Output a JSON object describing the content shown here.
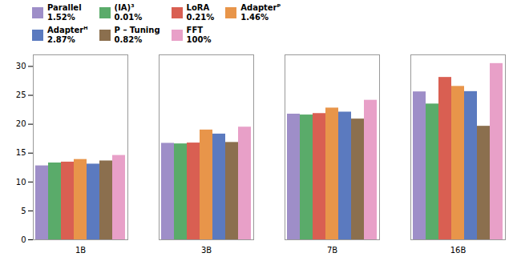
{
  "chart_data": {
    "type": "bar",
    "categories": [
      "1B",
      "3B",
      "7B",
      "16B"
    ],
    "series": [
      {
        "name": "Parallel\n1.52%",
        "color": "#9e8ec8",
        "values": [
          12.8,
          16.7,
          21.75,
          25.6
        ]
      },
      {
        "name": "(IA)³\n0.01%",
        "color": "#5aab6a",
        "values": [
          13.3,
          16.6,
          21.6,
          23.5
        ]
      },
      {
        "name": "LoRA\n0.21%",
        "color": "#d95f52",
        "values": [
          13.45,
          16.75,
          21.85,
          28.1
        ]
      },
      {
        "name": "Adapterᴾ\n1.46%",
        "color": "#e8954a",
        "values": [
          13.9,
          19.0,
          22.8,
          26.55
        ]
      },
      {
        "name": "Adapterᴴ\n2.87%",
        "color": "#5b7abf",
        "values": [
          13.1,
          18.3,
          22.1,
          25.65
        ]
      },
      {
        "name": "P – Tuning\n0.82%",
        "color": "#8b6f4e",
        "values": [
          13.65,
          16.85,
          20.9,
          19.65
        ]
      },
      {
        "name": "FFT\n100%",
        "color": "#e8a0c8",
        "values": [
          14.6,
          19.5,
          24.15,
          30.5
        ]
      }
    ],
    "ylim": [
      0,
      32
    ],
    "yticks": [
      0,
      5,
      10,
      15,
      20,
      25,
      30
    ],
    "grid": false,
    "legend": "upper left"
  }
}
